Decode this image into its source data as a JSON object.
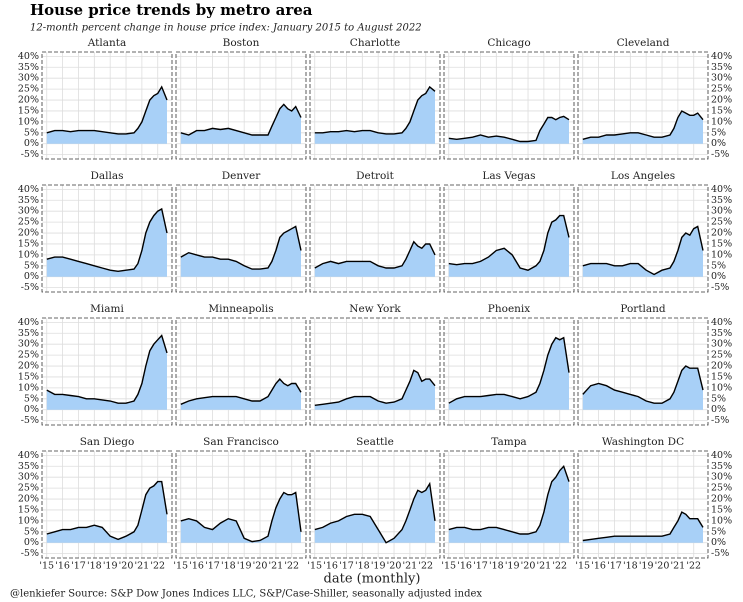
{
  "title": "House price trends by metro area",
  "subtitle": "12-month percent change in house price index: January 2015 to August 2022",
  "xlabel": "date (monthly)",
  "caption": "@lenkiefer Source: S&P Dow Jones Indices LLC, S&P/Case-Shiller, seasonally adjusted index",
  "xlim": [
    2014.7,
    2022.9
  ],
  "ylim": [
    -7,
    42
  ],
  "xticks": [
    {
      "value": 2015,
      "label": "'15"
    },
    {
      "value": 2016,
      "label": "'16"
    },
    {
      "value": 2017,
      "label": "'17"
    },
    {
      "value": 2018,
      "label": "'18"
    },
    {
      "value": 2019,
      "label": "'19"
    },
    {
      "value": 2020,
      "label": "'20"
    },
    {
      "value": 2021,
      "label": "'21"
    },
    {
      "value": 2022,
      "label": "'22"
    }
  ],
  "yticks": [
    {
      "value": -5,
      "label": "-5%"
    },
    {
      "value": 0,
      "label": "0%"
    },
    {
      "value": 5,
      "label": "5%"
    },
    {
      "value": 10,
      "label": "10%"
    },
    {
      "value": 15,
      "label": "15%"
    },
    {
      "value": 20,
      "label": "20%"
    },
    {
      "value": 25,
      "label": "25%"
    },
    {
      "value": 30,
      "label": "30%"
    },
    {
      "value": 35,
      "label": "35%"
    },
    {
      "value": 40,
      "label": "40%"
    }
  ],
  "grid": true,
  "fill": "#a8d0f7",
  "line_color": "#000000",
  "x": [
    2015.0,
    2015.5,
    2016.0,
    2016.5,
    2017.0,
    2017.5,
    2018.0,
    2018.5,
    2019.0,
    2019.5,
    2020.0,
    2020.5,
    2020.75,
    2021.0,
    2021.25,
    2021.5,
    2021.75,
    2022.0,
    2022.25,
    2022.583
  ],
  "chart_data": [
    {
      "type": "area",
      "title": "Atlanta",
      "values": [
        5,
        6,
        6,
        5.5,
        6,
        6,
        6,
        5.5,
        5,
        4.5,
        4.5,
        5,
        7,
        10,
        15,
        20,
        22,
        23,
        26,
        20
      ]
    },
    {
      "type": "area",
      "title": "Boston",
      "values": [
        5,
        4,
        6,
        6,
        7,
        6.5,
        7,
        6,
        5,
        4,
        4,
        4,
        8,
        12,
        16,
        18,
        16,
        15,
        17,
        12
      ]
    },
    {
      "type": "area",
      "title": "Charlotte",
      "values": [
        5,
        5,
        5.5,
        5.5,
        6,
        5.5,
        6,
        6,
        5,
        4.5,
        4.5,
        5,
        7,
        10,
        15,
        20,
        22,
        23,
        26,
        24
      ]
    },
    {
      "type": "area",
      "title": "Chicago",
      "values": [
        2.5,
        2,
        2.5,
        3,
        4,
        3,
        3.5,
        3,
        2,
        1,
        1,
        1.5,
        6,
        9,
        12,
        12,
        11,
        12,
        12.5,
        11
      ]
    },
    {
      "type": "area",
      "title": "Cleveland",
      "values": [
        2,
        3,
        3,
        4,
        4,
        4.5,
        5,
        5,
        4,
        3,
        3,
        4,
        7,
        12,
        15,
        14,
        13,
        13,
        14,
        11
      ]
    },
    {
      "type": "area",
      "title": "Dallas",
      "values": [
        8,
        9,
        9,
        8,
        7,
        6,
        5,
        4,
        3,
        2.5,
        3,
        3.5,
        6,
        12,
        20,
        25,
        28,
        30,
        31,
        20
      ]
    },
    {
      "type": "area",
      "title": "Denver",
      "values": [
        9,
        11,
        10,
        9,
        9,
        8,
        8,
        7,
        5,
        3.5,
        3.5,
        4,
        7,
        12,
        18,
        20,
        21,
        22,
        23,
        12
      ]
    },
    {
      "type": "area",
      "title": "Detroit",
      "values": [
        4,
        6,
        7,
        6,
        7,
        7,
        7,
        7,
        5,
        4,
        4,
        5,
        8,
        12,
        16,
        14,
        13,
        15,
        15,
        10
      ]
    },
    {
      "type": "area",
      "title": "Las Vegas",
      "values": [
        6,
        5.5,
        6,
        6,
        7,
        9,
        12,
        13,
        10,
        4,
        3,
        5,
        7,
        12,
        20,
        25,
        26,
        28,
        28,
        18
      ]
    },
    {
      "type": "area",
      "title": "Los Angeles",
      "values": [
        5,
        6,
        6,
        6,
        5,
        5,
        6,
        6,
        3,
        1,
        3,
        4,
        7,
        12,
        18,
        20,
        19,
        22,
        23,
        12
      ]
    },
    {
      "type": "area",
      "title": "Miami",
      "values": [
        9,
        7,
        7,
        6.5,
        6,
        5,
        5,
        4.5,
        4,
        3,
        3,
        4,
        7,
        12,
        20,
        27,
        30,
        32,
        34,
        26
      ]
    },
    {
      "type": "area",
      "title": "Minneapolis",
      "values": [
        2.5,
        4,
        5,
        5.5,
        6,
        6,
        6,
        6,
        5,
        4,
        4,
        6,
        9,
        12,
        14,
        12,
        11,
        12,
        12,
        8
      ]
    },
    {
      "type": "area",
      "title": "New York",
      "values": [
        2,
        2.5,
        3,
        3.5,
        5,
        6,
        6,
        6,
        4,
        3,
        3.5,
        5,
        9,
        13,
        18,
        17,
        13,
        14,
        14,
        11
      ]
    },
    {
      "type": "area",
      "title": "Phoenix",
      "values": [
        3,
        5,
        6,
        6,
        6,
        6.5,
        7,
        7,
        6,
        5,
        6,
        8,
        12,
        18,
        25,
        30,
        33,
        32,
        33,
        17
      ]
    },
    {
      "type": "area",
      "title": "Portland",
      "values": [
        7,
        11,
        12,
        11,
        9,
        8,
        7,
        6,
        4,
        3,
        3,
        5,
        8,
        13,
        18,
        20,
        19,
        19,
        19,
        9
      ]
    },
    {
      "type": "area",
      "title": "San Diego",
      "values": [
        4,
        5,
        6,
        6,
        7,
        7,
        8,
        7,
        3,
        1.5,
        3,
        5,
        8,
        15,
        22,
        25,
        26,
        28,
        28,
        13
      ]
    },
    {
      "type": "area",
      "title": "San Francisco",
      "values": [
        10,
        11,
        10,
        7,
        6,
        9,
        11,
        10,
        2,
        0.5,
        1,
        3,
        10,
        16,
        20,
        23,
        22,
        22,
        23,
        5
      ]
    },
    {
      "type": "area",
      "title": "Seattle",
      "values": [
        6,
        7,
        9,
        10,
        12,
        13,
        13,
        12,
        6,
        0,
        2,
        6,
        10,
        15,
        20,
        24,
        23,
        24,
        27,
        10
      ]
    },
    {
      "type": "area",
      "title": "Tampa",
      "values": [
        6,
        7,
        7,
        6,
        6,
        7,
        7,
        6,
        5,
        4,
        4,
        5,
        8,
        14,
        22,
        28,
        30,
        33,
        35,
        28
      ]
    },
    {
      "type": "area",
      "title": "Washington DC",
      "values": [
        1,
        1.5,
        2,
        2.5,
        3,
        3,
        3,
        3,
        3,
        3,
        3,
        4,
        7,
        10,
        14,
        13,
        11,
        11,
        11,
        7
      ]
    }
  ]
}
